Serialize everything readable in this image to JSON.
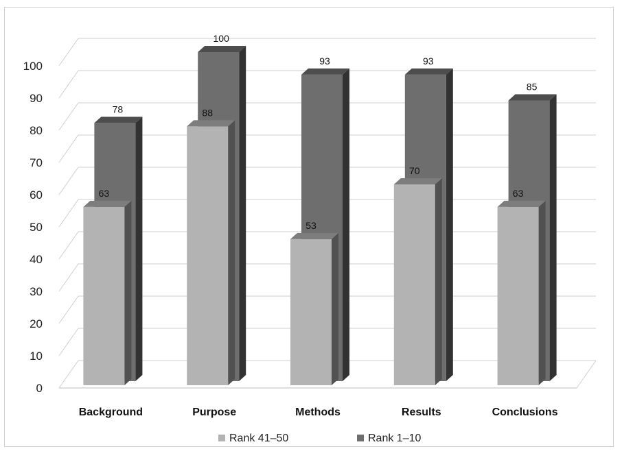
{
  "chart_data": {
    "type": "bar",
    "style": "3d-clustered-column",
    "categories": [
      "Background",
      "Purpose",
      "Methods",
      "Results",
      "Conclusions"
    ],
    "series": [
      {
        "name": "Rank 41–50",
        "values": [
          63,
          88,
          53,
          70,
          63
        ],
        "color": "#b3b3b3"
      },
      {
        "name": "Rank 1–10",
        "values": [
          78,
          100,
          93,
          93,
          85
        ],
        "color": "#6e6e6e"
      }
    ],
    "ylim": [
      0,
      100
    ],
    "yticks": [
      0,
      10,
      20,
      30,
      40,
      50,
      60,
      70,
      80,
      90,
      100
    ],
    "grid": true,
    "legend_position": "bottom",
    "title": "",
    "xlabel": "",
    "ylabel": ""
  }
}
